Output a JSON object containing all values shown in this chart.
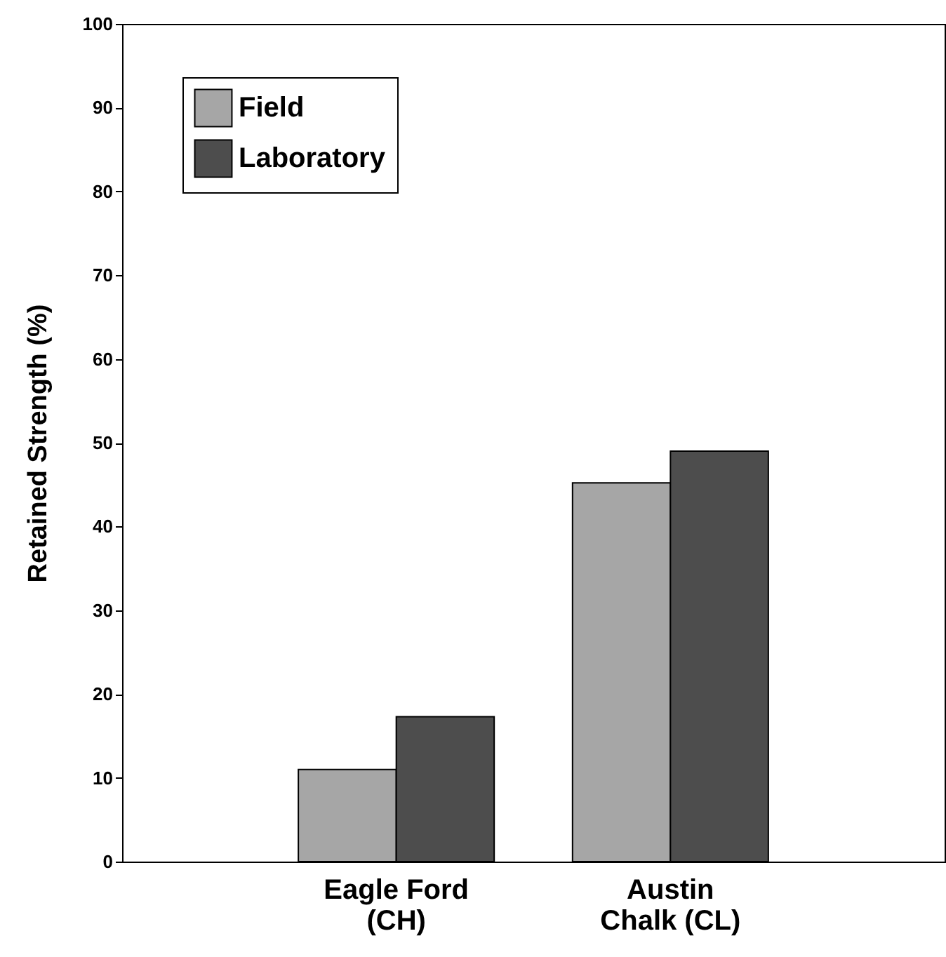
{
  "chart_data": {
    "type": "bar",
    "ylabel": "Retained Strength (%)",
    "categories": [
      "Eagle Ford\n(CH)",
      "Austin\nChalk (CL)"
    ],
    "series": [
      {
        "name": "Field",
        "color": "#a6a6a6",
        "values": [
          11,
          45.2
        ]
      },
      {
        "name": "Laboratory",
        "color": "#4d4d4d",
        "values": [
          17.3,
          49
        ]
      }
    ],
    "ylim": [
      0,
      100
    ],
    "yticks": [
      0,
      10,
      20,
      30,
      40,
      50,
      60,
      70,
      80,
      90,
      100
    ],
    "grid": false,
    "legend": "top left"
  }
}
